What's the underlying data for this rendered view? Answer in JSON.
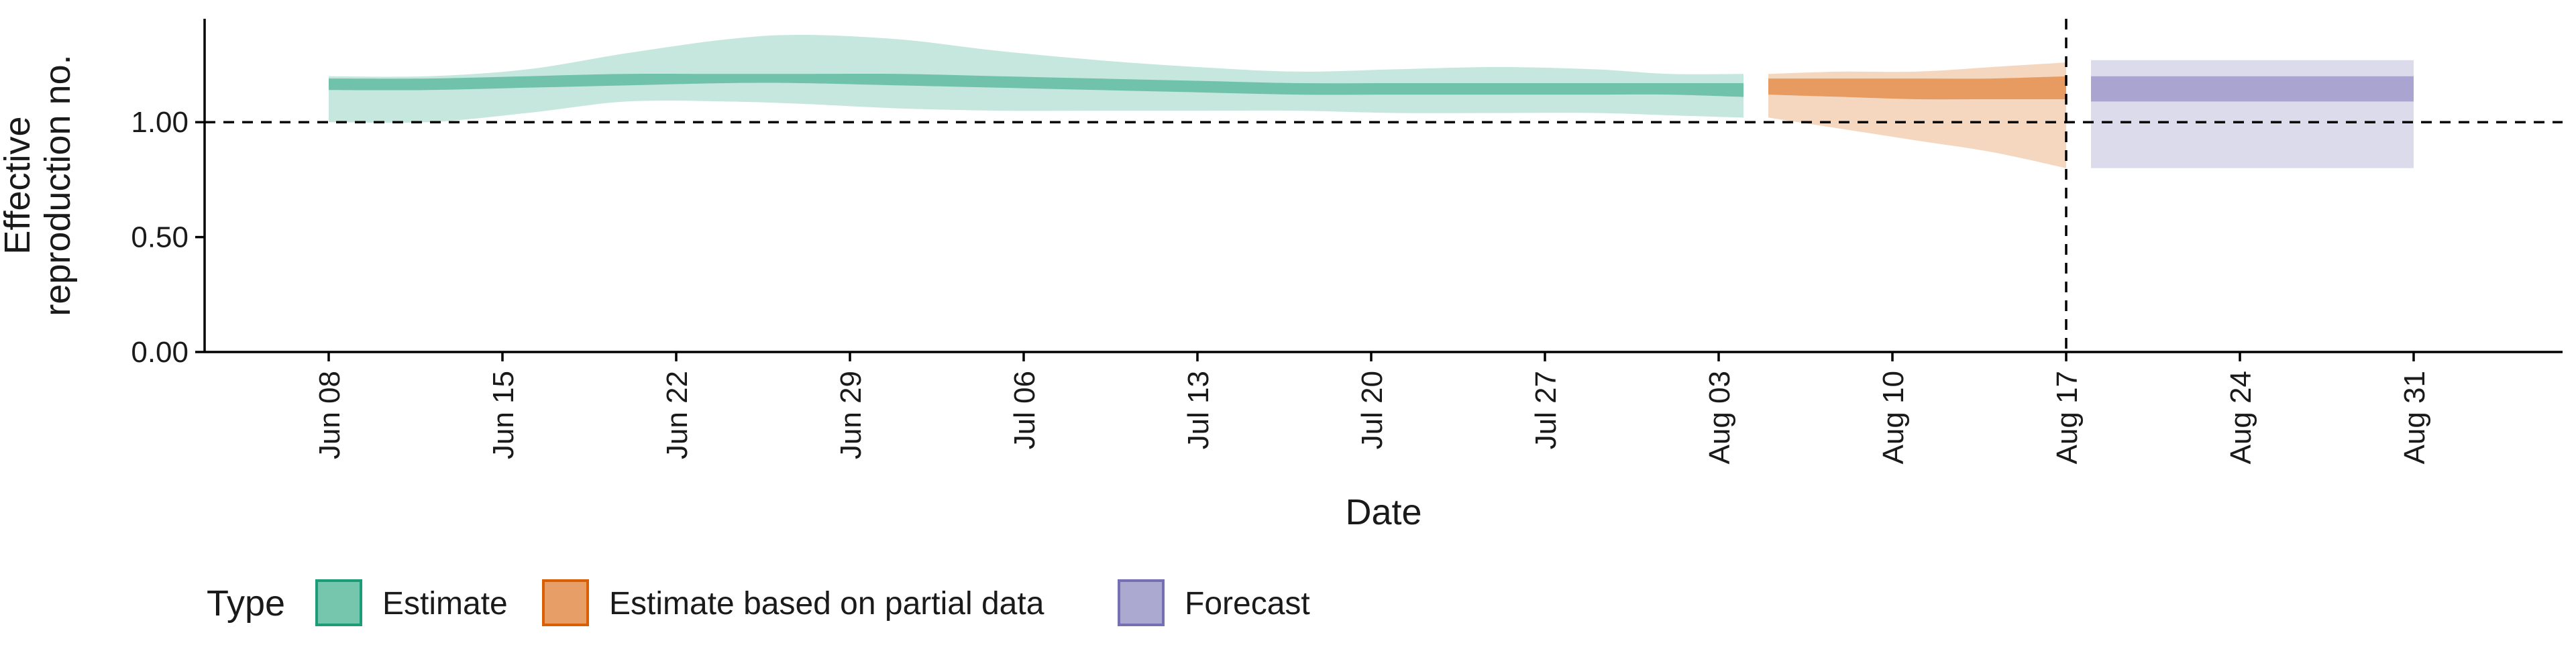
{
  "chart_data": {
    "type": "area",
    "title": "",
    "xlabel": "Date",
    "ylabel_lines": [
      "Effective",
      "reproduction no."
    ],
    "ylim": [
      0,
      1.45
    ],
    "yticks": [
      {
        "value": 0.0,
        "label": "0.00"
      },
      {
        "value": 0.5,
        "label": "0.50"
      },
      {
        "value": 1.0,
        "label": "1.00"
      }
    ],
    "xlim": [
      "2020-06-03",
      "2020-09-06"
    ],
    "xticks": [
      {
        "date": "2020-06-08",
        "label": "Jun 08"
      },
      {
        "date": "2020-06-15",
        "label": "Jun 15"
      },
      {
        "date": "2020-06-22",
        "label": "Jun 22"
      },
      {
        "date": "2020-06-29",
        "label": "Jun 29"
      },
      {
        "date": "2020-07-06",
        "label": "Jul 06"
      },
      {
        "date": "2020-07-13",
        "label": "Jul 13"
      },
      {
        "date": "2020-07-20",
        "label": "Jul 20"
      },
      {
        "date": "2020-07-27",
        "label": "Jul 27"
      },
      {
        "date": "2020-08-03",
        "label": "Aug 03"
      },
      {
        "date": "2020-08-10",
        "label": "Aug 10"
      },
      {
        "date": "2020-08-17",
        "label": "Aug 17"
      },
      {
        "date": "2020-08-24",
        "label": "Aug 24"
      },
      {
        "date": "2020-08-31",
        "label": "Aug 31"
      }
    ],
    "reference_lines": {
      "horizontal_y": 1.0,
      "vertical_date": "2020-08-17"
    },
    "legend": {
      "title": "Type",
      "position": "bottom-left",
      "items": [
        "Estimate",
        "Estimate based on partial data",
        "Forecast"
      ]
    },
    "series": [
      {
        "name": "Estimate",
        "color": "#1b9e77",
        "dates": [
          "2020-06-08",
          "2020-06-12",
          "2020-06-16",
          "2020-06-20",
          "2020-06-24",
          "2020-06-27",
          "2020-07-01",
          "2020-07-05",
          "2020-07-09",
          "2020-07-13",
          "2020-07-17",
          "2020-07-21",
          "2020-07-25",
          "2020-07-29",
          "2020-08-01",
          "2020-08-04"
        ],
        "upper90": [
          1.2,
          1.2,
          1.23,
          1.3,
          1.36,
          1.38,
          1.36,
          1.31,
          1.27,
          1.24,
          1.22,
          1.23,
          1.24,
          1.23,
          1.21,
          1.21
        ],
        "upper50": [
          1.19,
          1.19,
          1.2,
          1.21,
          1.21,
          1.21,
          1.21,
          1.2,
          1.19,
          1.18,
          1.17,
          1.17,
          1.17,
          1.17,
          1.17,
          1.17
        ],
        "median": [
          1.16,
          1.16,
          1.17,
          1.18,
          1.185,
          1.19,
          1.185,
          1.175,
          1.165,
          1.155,
          1.145,
          1.145,
          1.15,
          1.15,
          1.145,
          1.145
        ],
        "lower50": [
          1.14,
          1.14,
          1.15,
          1.16,
          1.17,
          1.17,
          1.16,
          1.15,
          1.14,
          1.13,
          1.12,
          1.12,
          1.12,
          1.12,
          1.12,
          1.11
        ],
        "lower90": [
          1.0,
          1.0,
          1.04,
          1.09,
          1.09,
          1.08,
          1.06,
          1.05,
          1.05,
          1.05,
          1.05,
          1.04,
          1.04,
          1.04,
          1.03,
          1.02
        ]
      },
      {
        "name": "Estimate based on partial data",
        "color": "#d95f02",
        "dates": [
          "2020-08-05",
          "2020-08-08",
          "2020-08-11",
          "2020-08-14",
          "2020-08-17"
        ],
        "upper90": [
          1.21,
          1.22,
          1.22,
          1.24,
          1.26
        ],
        "upper50": [
          1.19,
          1.19,
          1.19,
          1.19,
          1.2
        ],
        "median": [
          1.15,
          1.15,
          1.15,
          1.15,
          1.15
        ],
        "lower50": [
          1.12,
          1.11,
          1.1,
          1.1,
          1.1
        ],
        "lower90": [
          1.02,
          0.97,
          0.92,
          0.87,
          0.8
        ]
      },
      {
        "name": "Forecast",
        "color": "#7570b3",
        "dates": [
          "2020-08-18",
          "2020-08-31"
        ],
        "upper90": [
          1.27,
          1.27
        ],
        "upper50": [
          1.2,
          1.2
        ],
        "median": [
          1.15,
          1.15
        ],
        "lower50": [
          1.09,
          1.09
        ],
        "lower90": [
          0.8,
          0.8
        ]
      }
    ]
  }
}
